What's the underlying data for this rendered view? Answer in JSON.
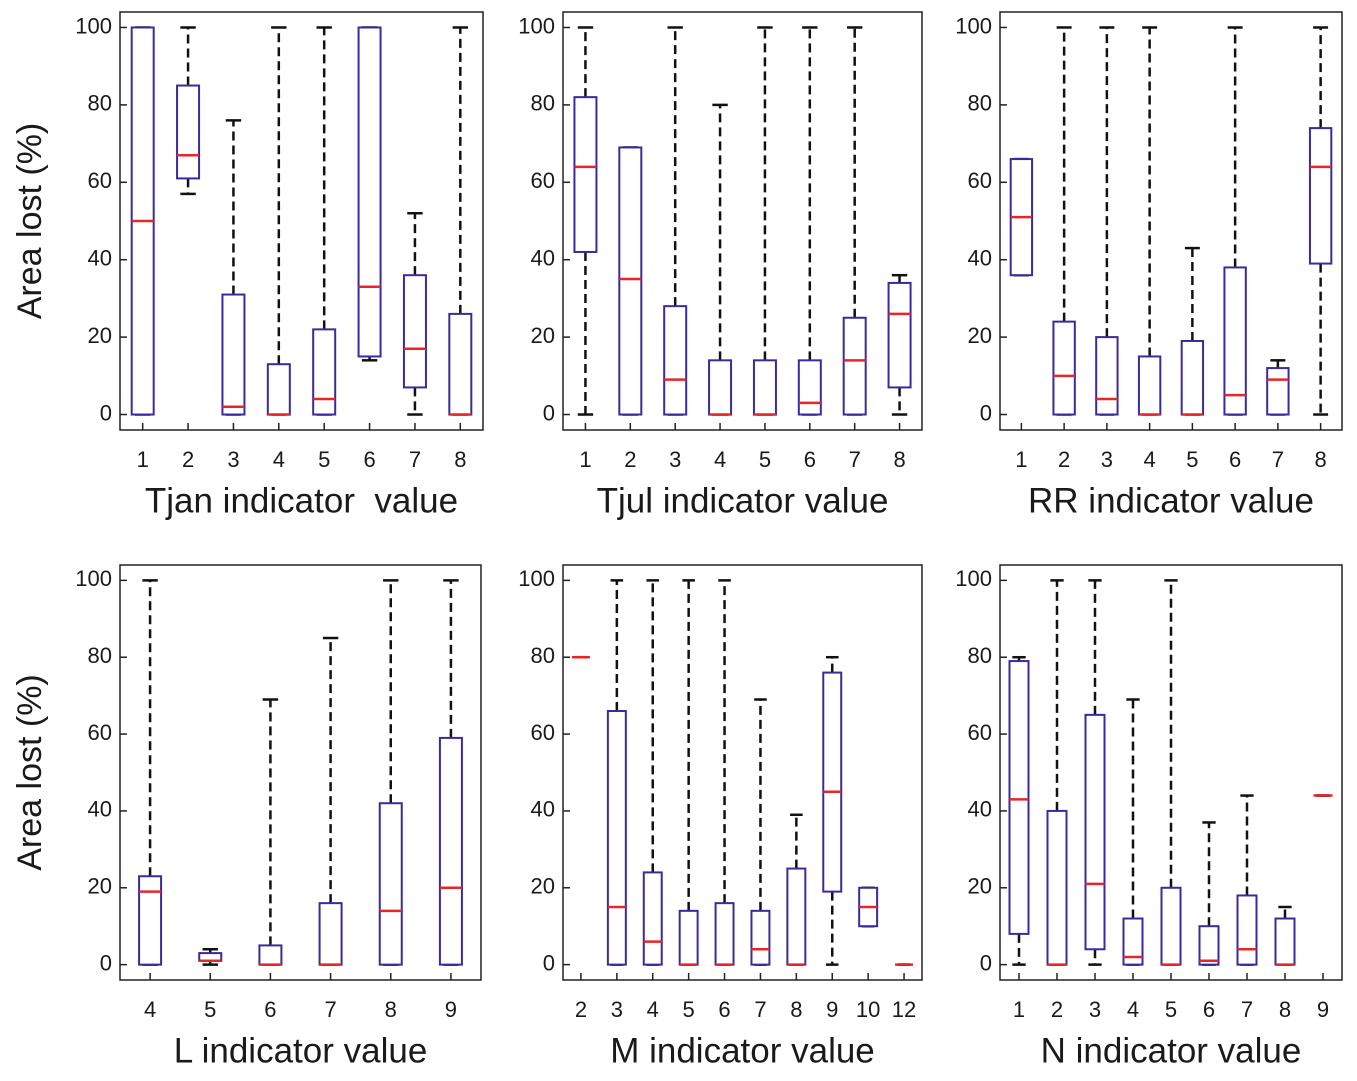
{
  "chart_data": [
    {
      "type": "box",
      "x_label": "Tjan indicator  value",
      "y_label": "Area lost (%)",
      "categories": [
        "1",
        "2",
        "3",
        "4",
        "5",
        "6",
        "7",
        "8"
      ],
      "whisker_low": [
        0,
        57,
        0,
        0,
        0,
        14,
        0,
        0
      ],
      "q1": [
        0,
        61,
        0,
        0,
        0,
        15,
        7,
        0
      ],
      "median": [
        50,
        67,
        2,
        0,
        4,
        33,
        17,
        0
      ],
      "q3": [
        100,
        85,
        31,
        13,
        22,
        100,
        36,
        26
      ],
      "whisker_high": [
        100,
        100,
        76,
        100,
        100,
        100,
        52,
        100
      ],
      "ylim": [
        -4,
        104
      ],
      "yticks": [
        0,
        20,
        40,
        60,
        80,
        100
      ],
      "box_color": "#3b2a9c",
      "median_color": "#e8262a",
      "whisker_color": "#111111"
    },
    {
      "type": "box",
      "x_label": "Tjul indicator value",
      "categories": [
        "1",
        "2",
        "3",
        "4",
        "5",
        "6",
        "7",
        "8"
      ],
      "whisker_low": [
        0,
        0,
        0,
        0,
        0,
        0,
        0,
        0
      ],
      "q1": [
        42,
        0,
        0,
        0,
        0,
        0,
        0,
        7
      ],
      "median": [
        64,
        35,
        9,
        0,
        0,
        3,
        14,
        26
      ],
      "q3": [
        82,
        69,
        28,
        14,
        14,
        14,
        25,
        34
      ],
      "whisker_high": [
        100,
        69,
        100,
        80,
        100,
        100,
        100,
        36
      ],
      "ylim": [
        -4,
        104
      ],
      "yticks": [
        0,
        20,
        40,
        60,
        80,
        100
      ],
      "box_color": "#3b2a9c",
      "median_color": "#e8262a",
      "whisker_color": "#111111"
    },
    {
      "type": "box",
      "x_label": "RR indicator value",
      "categories": [
        "1",
        "2",
        "3",
        "4",
        "5",
        "6",
        "7",
        "8"
      ],
      "whisker_low": [
        36,
        0,
        0,
        0,
        0,
        0,
        0,
        0
      ],
      "q1": [
        36,
        0,
        0,
        0,
        0,
        0,
        0,
        39
      ],
      "median": [
        51,
        10,
        4,
        0,
        0,
        5,
        9,
        64
      ],
      "q3": [
        66,
        24,
        20,
        15,
        19,
        38,
        12,
        74
      ],
      "whisker_high": [
        66,
        100,
        100,
        100,
        43,
        100,
        14,
        100
      ],
      "ylim": [
        -4,
        104
      ],
      "yticks": [
        0,
        20,
        40,
        60,
        80,
        100
      ],
      "box_color": "#3b2a9c",
      "median_color": "#e8262a",
      "whisker_color": "#111111"
    },
    {
      "type": "box",
      "x_label": "L indicator value",
      "y_label": "Area lost (%)",
      "categories": [
        "4",
        "5",
        "6",
        "7",
        "8",
        "9"
      ],
      "whisker_low": [
        0,
        0,
        0,
        0,
        0,
        0
      ],
      "q1": [
        0,
        1,
        0,
        0,
        0,
        0
      ],
      "median": [
        19,
        1,
        0,
        0,
        14,
        20
      ],
      "q3": [
        23,
        3,
        5,
        16,
        42,
        59
      ],
      "whisker_high": [
        100,
        4,
        69,
        85,
        100,
        100
      ],
      "ylim": [
        -4,
        104
      ],
      "yticks": [
        0,
        20,
        40,
        60,
        80,
        100
      ],
      "box_color": "#3b2a9c",
      "median_color": "#e8262a",
      "whisker_color": "#111111"
    },
    {
      "type": "box",
      "x_label": "M indicator value",
      "categories": [
        "2",
        "3",
        "4",
        "5",
        "6",
        "7",
        "8",
        "9",
        "10",
        "12"
      ],
      "whisker_low": [
        80,
        0,
        0,
        0,
        0,
        0,
        0,
        0,
        10,
        0
      ],
      "q1": [
        80,
        0,
        0,
        0,
        0,
        0,
        0,
        19,
        10,
        0
      ],
      "median": [
        80,
        15,
        6,
        0,
        0,
        4,
        0,
        45,
        15,
        0
      ],
      "q3": [
        80,
        66,
        24,
        14,
        16,
        14,
        25,
        76,
        20,
        0
      ],
      "whisker_high": [
        80,
        100,
        100,
        100,
        100,
        69,
        39,
        80,
        20,
        0
      ],
      "ylim": [
        -4,
        104
      ],
      "yticks": [
        0,
        20,
        40,
        60,
        80,
        100
      ],
      "box_color": "#3b2a9c",
      "median_color": "#e8262a",
      "whisker_color": "#111111"
    },
    {
      "type": "box",
      "x_label": "N indicator value",
      "categories": [
        "1",
        "2",
        "3",
        "4",
        "5",
        "6",
        "7",
        "8",
        "9"
      ],
      "whisker_low": [
        0,
        0,
        0,
        0,
        0,
        0,
        0,
        0,
        44
      ],
      "q1": [
        8,
        0,
        4,
        0,
        0,
        0,
        0,
        0,
        44
      ],
      "median": [
        43,
        0,
        21,
        2,
        0,
        1,
        4,
        0,
        44
      ],
      "q3": [
        79,
        40,
        65,
        12,
        20,
        10,
        18,
        12,
        44
      ],
      "whisker_high": [
        80,
        100,
        100,
        69,
        100,
        37,
        44,
        15,
        44
      ],
      "ylim": [
        -4,
        104
      ],
      "yticks": [
        0,
        20,
        40,
        60,
        80,
        100
      ],
      "box_color": "#3b2a9c",
      "median_color": "#e8262a",
      "whisker_color": "#111111"
    }
  ]
}
